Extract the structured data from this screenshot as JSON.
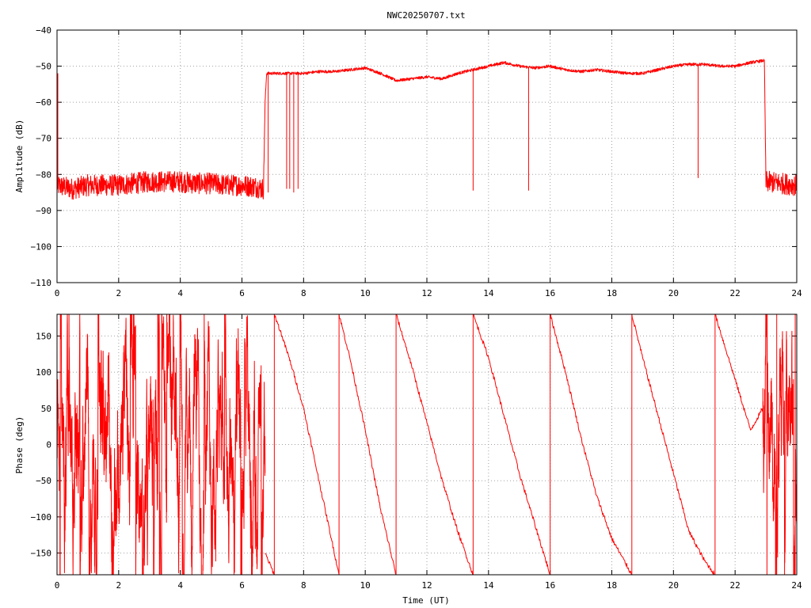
{
  "title": "NWC20250707.txt",
  "colors": {
    "trace": "#ff0000",
    "grid": "#a0a0a0",
    "axes": "#000000",
    "background": "#ffffff"
  },
  "chart_data": [
    {
      "type": "line",
      "panel": "amplitude",
      "title": "NWC20250707.txt",
      "xlabel": "",
      "ylabel": "Amplitude (dB)",
      "xlim": [
        0,
        24
      ],
      "ylim": [
        -110,
        -40
      ],
      "xticks": [
        "0",
        "2",
        "4",
        "6",
        "8",
        "10",
        "12",
        "14",
        "16",
        "18",
        "20",
        "22",
        "24"
      ],
      "yticks": [
        "−40",
        "−50",
        "−60",
        "−70",
        "−80",
        "−90",
        "−100",
        "−110"
      ],
      "grid": true,
      "noise_level_db": -83,
      "noise_spread_db": 3,
      "series": [
        {
          "x": [
            0,
            0.5,
            1,
            1.5,
            2,
            2.5,
            3,
            3.5,
            4,
            4.5,
            5,
            5.5,
            6,
            6.5,
            6.7,
            6.75,
            6.8,
            7,
            7.5,
            8,
            8.5,
            9,
            9.5,
            10,
            10.5,
            11,
            11.5,
            12,
            12.5,
            13,
            13.5,
            14,
            14.5,
            15,
            15.5,
            16,
            16.5,
            17,
            17.5,
            18,
            18.5,
            19,
            19.5,
            20,
            20.5,
            21,
            21.5,
            22,
            22.5,
            22.9,
            22.95,
            23,
            23.5,
            24
          ],
          "y": [
            -83,
            -84,
            -83,
            -83,
            -83,
            -82.5,
            -82,
            -82,
            -82,
            -82.5,
            -82.5,
            -83,
            -83,
            -83.5,
            -84,
            -60,
            -52,
            -52,
            -52,
            -52,
            -51.5,
            -51.5,
            -51,
            -50.5,
            -52,
            -54,
            -53.5,
            -53,
            -53.5,
            -52,
            -51,
            -50,
            -49,
            -50,
            -50.5,
            -50,
            -51,
            -51.5,
            -51,
            -51.5,
            -52,
            -52,
            -51,
            -50,
            -49.5,
            -49.5,
            -50,
            -50,
            -49,
            -48.5,
            -48.5,
            -82,
            -82.5,
            -83
          ]
        }
      ],
      "dropouts": [
        {
          "x": 6.85,
          "y": -85
        },
        {
          "x": 7.45,
          "y": -84
        },
        {
          "x": 7.55,
          "y": -84
        },
        {
          "x": 7.68,
          "y": -85
        },
        {
          "x": 7.82,
          "y": -84
        },
        {
          "x": 13.5,
          "y": -84.5
        },
        {
          "x": 15.3,
          "y": -84.5
        },
        {
          "x": 20.8,
          "y": -81
        }
      ]
    },
    {
      "type": "line",
      "panel": "phase",
      "xlabel": "Time (UT)",
      "ylabel": "Phase (deg)",
      "xlim": [
        0,
        24
      ],
      "ylim": [
        -180,
        180
      ],
      "xticks": [
        "0",
        "2",
        "4",
        "6",
        "8",
        "10",
        "12",
        "14",
        "16",
        "18",
        "20",
        "22",
        "24"
      ],
      "yticks": [
        "150",
        "100",
        "50",
        "0",
        "−50",
        "−100",
        "−150"
      ],
      "grid": true,
      "noisy_segments": [
        {
          "x_start": 0,
          "x_end": 6.75
        },
        {
          "x_start": 22.9,
          "x_end": 24
        }
      ],
      "wraps": [
        7.05,
        9.15,
        11.0,
        13.5,
        16.0,
        18.65,
        21.35,
        23.35,
        23.95
      ],
      "series": [
        {
          "x": [
            6.75,
            7.05,
            7.05,
            7.3,
            7.6,
            8.0,
            8.5,
            9.15,
            9.15,
            9.5,
            10.0,
            10.5,
            11.0,
            11.0,
            11.5,
            12.0,
            12.5,
            13.0,
            13.5,
            13.5,
            14.0,
            14.5,
            15.0,
            15.5,
            16.0,
            16.0,
            16.5,
            17.0,
            17.5,
            18.0,
            18.65,
            18.65,
            19.0,
            19.5,
            20.0,
            20.5,
            21.0,
            21.35,
            21.35,
            22.0,
            22.5,
            22.9
          ],
          "y": [
            -150,
            -180,
            180,
            150,
            110,
            50,
            -50,
            -180,
            180,
            120,
            20,
            -90,
            -180,
            180,
            110,
            30,
            -50,
            -120,
            -180,
            180,
            120,
            40,
            -40,
            -110,
            -180,
            180,
            100,
            10,
            -70,
            -130,
            -180,
            180,
            120,
            40,
            -40,
            -120,
            -160,
            -180,
            180,
            90,
            20,
            50
          ]
        }
      ]
    }
  ]
}
